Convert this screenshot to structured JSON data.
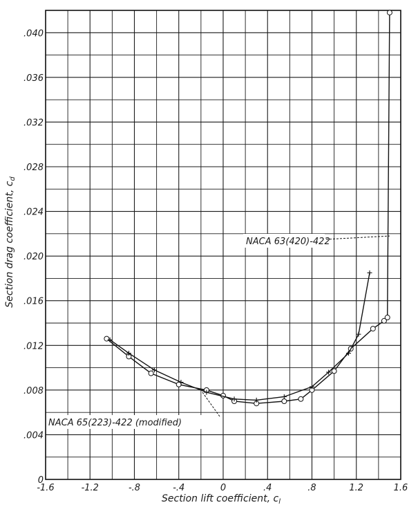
{
  "chart_data": {
    "type": "scatter",
    "title": "",
    "xlabel": "Section lift coefficient, c",
    "xlabel_subscript": "l",
    "ylabel": "Section drag coefficient, c",
    "ylabel_subscript": "d",
    "xlim": [
      -1.6,
      1.6
    ],
    "ylim": [
      0,
      0.042
    ],
    "grid": true,
    "x_ticks": [
      -1.6,
      -1.2,
      -0.8,
      -0.4,
      0,
      0.4,
      0.8,
      1.2,
      1.6
    ],
    "x_tick_labels": [
      "-1.6",
      "-1.2",
      "-.8",
      "-.4",
      "0",
      ".4",
      ".8",
      "1.2",
      "1.6"
    ],
    "y_ticks": [
      0,
      0.004,
      0.008,
      0.012,
      0.016,
      0.02,
      0.024,
      0.028,
      0.032,
      0.036,
      0.04
    ],
    "y_tick_labels": [
      "0",
      ".004",
      ".008",
      ".012",
      ".016",
      ".020",
      ".024",
      ".028",
      ".032",
      ".036",
      ".040"
    ],
    "series": [
      {
        "name": "NACA 63(420)-422",
        "marker": "circle",
        "points": [
          [
            -1.05,
            0.0126
          ],
          [
            -0.85,
            0.011
          ],
          [
            -0.65,
            0.0095
          ],
          [
            -0.4,
            0.0085
          ],
          [
            -0.15,
            0.008
          ],
          [
            0.0,
            0.0075
          ],
          [
            0.1,
            0.007
          ],
          [
            0.3,
            0.0068
          ],
          [
            0.55,
            0.007
          ],
          [
            0.7,
            0.0072
          ],
          [
            0.8,
            0.008
          ],
          [
            1.0,
            0.0097
          ],
          [
            1.15,
            0.0117
          ],
          [
            1.35,
            0.0135
          ],
          [
            1.45,
            0.0142
          ],
          [
            1.48,
            0.0145
          ],
          [
            1.5,
            0.0418
          ]
        ]
      },
      {
        "name": "NACA 65(223)-422 (modified)",
        "marker": "plus",
        "points": [
          [
            -1.02,
            0.0125
          ],
          [
            -0.85,
            0.0113
          ],
          [
            -0.62,
            0.0098
          ],
          [
            -0.38,
            0.0087
          ],
          [
            -0.15,
            0.0078
          ],
          [
            0.1,
            0.0072
          ],
          [
            0.3,
            0.0071
          ],
          [
            0.55,
            0.0074
          ],
          [
            0.8,
            0.0083
          ],
          [
            0.95,
            0.0096
          ],
          [
            1.13,
            0.0113
          ],
          [
            1.22,
            0.013
          ],
          [
            1.32,
            0.0185
          ]
        ]
      }
    ],
    "annotations": [
      {
        "text": "NACA 63(420)-422",
        "target": [
          1.5,
          0.0218
        ]
      },
      {
        "text": "NACA 65(223)-422 (modified)",
        "target": [
          -0.2,
          0.008
        ]
      }
    ]
  }
}
